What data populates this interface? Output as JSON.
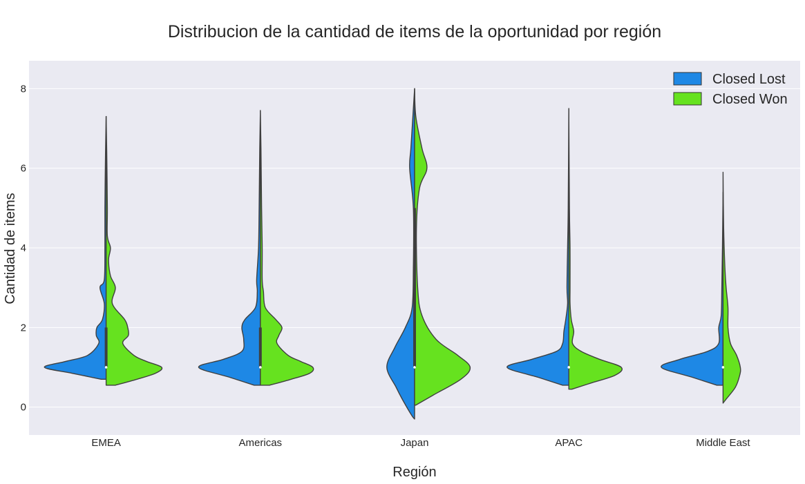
{
  "chart_data": {
    "type": "violin",
    "split": true,
    "title": "Distribucion de la cantidad de items de la oportunidad por región",
    "xlabel": "Región",
    "ylabel": "Cantidad de items",
    "ylim": [
      -0.7,
      8.7
    ],
    "yticks": [
      0,
      2,
      4,
      6,
      8
    ],
    "grid": true,
    "legend_position": "top-right",
    "categories": [
      "EMEA",
      "Americas",
      "Japan",
      "APAC",
      "Middle East"
    ],
    "series": [
      {
        "name": "Closed Lost",
        "color": "#1e88e5",
        "violins": [
          {
            "profile": [
              [
                0.7,
                0.08
              ],
              [
                0.85,
                0.55
              ],
              [
                1.0,
                1.0
              ],
              [
                1.15,
                0.65
              ],
              [
                1.3,
                0.3
              ],
              [
                1.6,
                0.12
              ],
              [
                1.8,
                0.16
              ],
              [
                2.0,
                0.15
              ],
              [
                2.2,
                0.06
              ],
              [
                2.6,
                0.03
              ],
              [
                3.0,
                0.1
              ],
              [
                3.2,
                0.03
              ],
              [
                4.0,
                0.02
              ],
              [
                5.0,
                0.02
              ],
              [
                6.4,
                0.01
              ],
              [
                7.3,
                0.0
              ]
            ]
          },
          {
            "profile": [
              [
                0.55,
                0.1
              ],
              [
                0.75,
                0.5
              ],
              [
                1.0,
                1.0
              ],
              [
                1.2,
                0.6
              ],
              [
                1.4,
                0.3
              ],
              [
                1.7,
                0.27
              ],
              [
                2.0,
                0.3
              ],
              [
                2.2,
                0.25
              ],
              [
                2.5,
                0.08
              ],
              [
                2.9,
                0.05
              ],
              [
                3.2,
                0.06
              ],
              [
                4.0,
                0.03
              ],
              [
                5.0,
                0.02
              ],
              [
                6.5,
                0.01
              ],
              [
                7.45,
                0.0
              ]
            ]
          },
          {
            "profile": [
              [
                -0.3,
                0.0
              ],
              [
                -0.2,
                0.05
              ],
              [
                0.2,
                0.2
              ],
              [
                0.5,
                0.3
              ],
              [
                1.0,
                0.45
              ],
              [
                1.5,
                0.32
              ],
              [
                2.0,
                0.15
              ],
              [
                2.5,
                0.04
              ],
              [
                3.5,
                0.02
              ],
              [
                5.0,
                0.02
              ],
              [
                6.0,
                0.08
              ],
              [
                6.5,
                0.06
              ],
              [
                7.5,
                0.02
              ],
              [
                8.0,
                0.0
              ]
            ]
          },
          {
            "profile": [
              [
                0.55,
                0.1
              ],
              [
                0.75,
                0.5
              ],
              [
                1.0,
                1.0
              ],
              [
                1.2,
                0.6
              ],
              [
                1.4,
                0.2
              ],
              [
                1.6,
                0.1
              ],
              [
                1.9,
                0.08
              ],
              [
                2.2,
                0.05
              ],
              [
                2.6,
                0.02
              ],
              [
                3.0,
                0.03
              ],
              [
                4.0,
                0.02
              ],
              [
                5.0,
                0.01
              ],
              [
                7.5,
                0.0
              ]
            ]
          },
          {
            "profile": [
              [
                0.55,
                0.1
              ],
              [
                0.75,
                0.5
              ],
              [
                1.0,
                1.0
              ],
              [
                1.2,
                0.7
              ],
              [
                1.4,
                0.25
              ],
              [
                1.6,
                0.07
              ],
              [
                2.0,
                0.07
              ],
              [
                2.3,
                0.03
              ],
              [
                3.0,
                0.02
              ],
              [
                4.0,
                0.01
              ],
              [
                5.4,
                0.0
              ]
            ]
          }
        ]
      },
      {
        "name": "Closed Won",
        "color": "#66e21f",
        "violins": [
          {
            "profile": [
              [
                0.55,
                0.15
              ],
              [
                0.7,
                0.5
              ],
              [
                0.85,
                0.8
              ],
              [
                1.0,
                0.9
              ],
              [
                1.15,
                0.65
              ],
              [
                1.3,
                0.45
              ],
              [
                1.6,
                0.27
              ],
              [
                1.8,
                0.36
              ],
              [
                2.0,
                0.35
              ],
              [
                2.2,
                0.3
              ],
              [
                2.6,
                0.1
              ],
              [
                3.0,
                0.15
              ],
              [
                3.3,
                0.07
              ],
              [
                3.7,
                0.04
              ],
              [
                4.0,
                0.07
              ],
              [
                4.3,
                0.02
              ],
              [
                5.0,
                0.02
              ],
              [
                6.4,
                0.01
              ],
              [
                7.3,
                0.0
              ]
            ]
          },
          {
            "profile": [
              [
                0.55,
                0.15
              ],
              [
                0.7,
                0.5
              ],
              [
                0.85,
                0.8
              ],
              [
                1.0,
                0.85
              ],
              [
                1.15,
                0.65
              ],
              [
                1.3,
                0.45
              ],
              [
                1.6,
                0.27
              ],
              [
                1.8,
                0.3
              ],
              [
                2.0,
                0.35
              ],
              [
                2.2,
                0.25
              ],
              [
                2.5,
                0.08
              ],
              [
                2.9,
                0.05
              ],
              [
                3.2,
                0.03
              ],
              [
                4.0,
                0.03
              ],
              [
                5.0,
                0.02
              ],
              [
                6.5,
                0.01
              ],
              [
                7.45,
                0.0
              ]
            ]
          },
          {
            "profile": [
              [
                0.05,
                0.02
              ],
              [
                0.3,
                0.3
              ],
              [
                0.7,
                0.75
              ],
              [
                1.0,
                0.9
              ],
              [
                1.3,
                0.7
              ],
              [
                1.7,
                0.35
              ],
              [
                2.3,
                0.12
              ],
              [
                3.0,
                0.05
              ],
              [
                4.5,
                0.03
              ],
              [
                5.5,
                0.08
              ],
              [
                6.0,
                0.2
              ],
              [
                6.5,
                0.12
              ],
              [
                7.3,
                0.02
              ],
              [
                8.0,
                0.0
              ]
            ]
          },
          {
            "profile": [
              [
                0.45,
                0.05
              ],
              [
                0.6,
                0.35
              ],
              [
                0.8,
                0.75
              ],
              [
                1.0,
                0.85
              ],
              [
                1.2,
                0.5
              ],
              [
                1.4,
                0.2
              ],
              [
                1.6,
                0.06
              ],
              [
                1.9,
                0.08
              ],
              [
                2.2,
                0.04
              ],
              [
                2.6,
                0.02
              ],
              [
                3.0,
                0.02
              ],
              [
                4.0,
                0.02
              ],
              [
                5.0,
                0.01
              ],
              [
                7.5,
                0.0
              ]
            ]
          },
          {
            "profile": [
              [
                0.1,
                0.0
              ],
              [
                0.2,
                0.05
              ],
              [
                0.5,
                0.2
              ],
              [
                0.8,
                0.27
              ],
              [
                1.0,
                0.28
              ],
              [
                1.3,
                0.22
              ],
              [
                1.6,
                0.12
              ],
              [
                2.0,
                0.08
              ],
              [
                2.5,
                0.08
              ],
              [
                3.0,
                0.05
              ],
              [
                3.5,
                0.03
              ],
              [
                4.5,
                0.01
              ],
              [
                5.9,
                0.0
              ]
            ]
          }
        ]
      }
    ],
    "boxes": [
      {
        "q1": 1,
        "median": 1,
        "q3": 2
      },
      {
        "q1": 1,
        "median": 1,
        "q3": 2
      },
      {
        "q1": 1,
        "median": 1,
        "q3": 5
      },
      {
        "q1": 1,
        "median": 1,
        "q3": 1
      },
      {
        "q1": 1,
        "median": 1,
        "q3": 1
      }
    ]
  }
}
